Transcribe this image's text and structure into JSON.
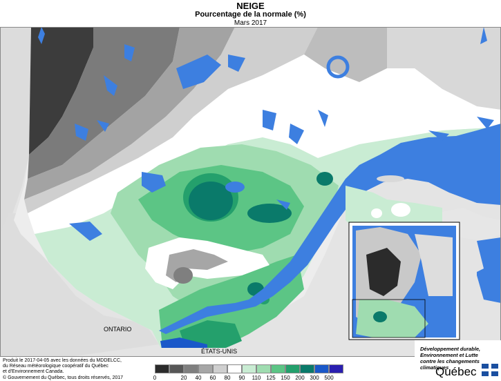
{
  "header": {
    "title": "NEIGE",
    "subtitle": "Pourcentage de la normale (%)",
    "period": "Mars 2017"
  },
  "map_labels": {
    "ontario": "ONTARIO",
    "usa": "ÉTATS-UNIS"
  },
  "credits": {
    "line1": "Produit le 2017-04-05 avec les données du MDDELCC,",
    "line2": "du Réseau météorologique coopératif du Québec",
    "line3": "et d'Environnement Canada.",
    "line4": "© Gouvernement du Québec, tous droits réservés, 2017"
  },
  "legend": {
    "colors": [
      "#2b2b2b",
      "#575757",
      "#7f7f7f",
      "#a6a6a6",
      "#cfcfcf",
      "#ffffff",
      "#c9ecd3",
      "#9fdcb0",
      "#5cc585",
      "#24a06c",
      "#0a7a6a",
      "#1a58c9",
      "#2a1fb0"
    ],
    "ticks": [
      "0",
      "20",
      "40",
      "60",
      "80",
      "90",
      "110",
      "125",
      "150",
      "200",
      "300",
      "500"
    ]
  },
  "logo": {
    "line1": "Développement durable,",
    "line2": "Environnement et Lutte",
    "line3": "contre les changements",
    "line4": "climatiques",
    "brand": "Québec"
  },
  "colors": {
    "water": "#3d7fe0",
    "outside": "#e2e2e2"
  }
}
